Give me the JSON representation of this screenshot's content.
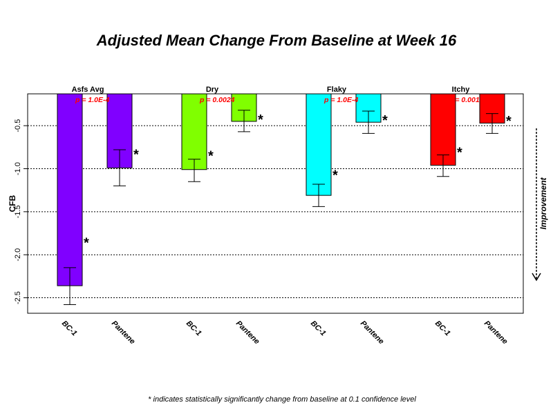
{
  "chart_data": {
    "type": "bar",
    "title": "Adjusted Mean Change From Baseline at Week 16",
    "ylabel": "CFB",
    "xlabel": "",
    "ylim": [
      -2.68,
      -0.13
    ],
    "yticks": [
      -0.5,
      -1.0,
      -1.5,
      -2.0,
      -2.5
    ],
    "ytick_labels": [
      "-0.5",
      "-1.0",
      "-1.5",
      "-2.0",
      "-2.5"
    ],
    "grid": "horizontal dotted",
    "groups": [
      {
        "name": "Asfs Avg",
        "pvalue": "p = 1.0E-4",
        "color": "#8000ff",
        "bars": [
          {
            "label": "BC-1",
            "value": -2.36,
            "err_low": -2.58,
            "err_high": -2.15,
            "significant": "*"
          },
          {
            "label": "Pantene",
            "value": -0.99,
            "err_low": -1.2,
            "err_high": -0.78,
            "significant": "*"
          }
        ]
      },
      {
        "name": "Dry",
        "pvalue": "p = 0.0024",
        "color": "#80ff00",
        "bars": [
          {
            "label": "BC-1",
            "value": -1.01,
            "err_low": -1.15,
            "err_high": -0.89,
            "significant": "*"
          },
          {
            "label": "Pantene",
            "value": -0.45,
            "err_low": -0.57,
            "err_high": -0.32,
            "significant": "*"
          }
        ]
      },
      {
        "name": "Flaky",
        "pvalue": "p = 1.0E-4",
        "color": "#00ffff",
        "bars": [
          {
            "label": "BC-1",
            "value": -1.31,
            "err_low": -1.44,
            "err_high": -1.18,
            "significant": "*"
          },
          {
            "label": "Pantene",
            "value": -0.46,
            "err_low": -0.59,
            "err_high": -0.33,
            "significant": "*"
          }
        ]
      },
      {
        "name": "Itchy",
        "pvalue": "p = 0.0017",
        "color": "#ff0000",
        "bars": [
          {
            "label": "BC-1",
            "value": -0.96,
            "err_low": -1.09,
            "err_high": -0.84,
            "significant": "*"
          },
          {
            "label": "Pantene",
            "value": -0.47,
            "err_low": -0.59,
            "err_high": -0.36,
            "significant": "*"
          }
        ]
      }
    ],
    "side_annotation": "Improvement",
    "footnote": "* indicates statistically significantly change from baseline at 0.1 confidence level"
  }
}
